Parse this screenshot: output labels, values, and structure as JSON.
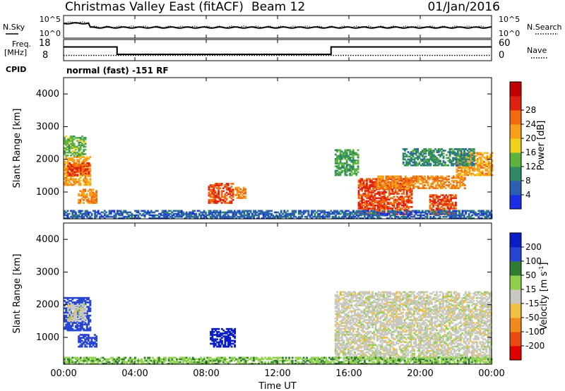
{
  "header": {
    "station": "Christmas Valley East (fitACF)",
    "beam": "Beam 12",
    "date": "01/Jan/2016"
  },
  "noise_panel": {
    "left_label": "N.Sky",
    "right_label": "N.Search",
    "left_ticks": [
      "10^5",
      "10^0"
    ],
    "right_ticks": [
      "10^5",
      "10^0"
    ]
  },
  "freq_panel": {
    "left_label_1": "Freq.",
    "left_label_2": "[MHz]",
    "right_label": "Nave",
    "left_ticks": [
      "18",
      "8"
    ],
    "right_ticks": [
      "60",
      "0"
    ],
    "freq_steps": [
      {
        "start_h": 0.0,
        "end_h": 3.0,
        "mhz": 14.5
      },
      {
        "start_h": 3.0,
        "end_h": 15.0,
        "mhz": 11.0
      },
      {
        "start_h": 15.0,
        "end_h": 24.0,
        "mhz": 14.5
      }
    ],
    "nave_level": 15
  },
  "cpid": {
    "label": "CPID",
    "text": "normal (fast) -151 RF"
  },
  "time_axis": {
    "title": "Time UT",
    "ticks": [
      "00:00",
      "04:00",
      "08:00",
      "12:00",
      "16:00",
      "20:00",
      "00:00"
    ]
  },
  "range_axis": {
    "title": "Slant Range [km]",
    "ticks": [
      "1000",
      "2000",
      "3000",
      "4000"
    ]
  },
  "power_bar": {
    "title": "Power [dB]",
    "ticks": [
      "4",
      "8",
      "12",
      "16",
      "20",
      "24",
      "28"
    ],
    "colors": [
      "#1a2ee6",
      "#2b5fb0",
      "#2f8a63",
      "#5db33f",
      "#f0d21c",
      "#f5a018",
      "#f06a0f",
      "#e02010",
      "#c00000"
    ]
  },
  "velocity_bar": {
    "title": "Velocity [m s",
    "title_sup": "-1",
    "title_end": "]",
    "ticks": [
      "200",
      "100",
      "50",
      "15",
      "-15",
      "-50",
      "-100",
      "-200"
    ],
    "colors": [
      "#0a1ec8",
      "#2846d2",
      "#2e7d32",
      "#8fd14f",
      "#c8c8c0",
      "#f0c040",
      "#f08a1c",
      "#e84a10",
      "#e00000"
    ]
  },
  "chart_data": {
    "type": "heatmap",
    "x_range_hours": [
      0,
      24
    ],
    "y_range_km": [
      180,
      4500
    ],
    "power_patches": [
      {
        "t0": 0.0,
        "t1": 1.5,
        "r0": 1200,
        "r1": 2100,
        "db": 22
      },
      {
        "t0": 0.2,
        "t1": 1.4,
        "r0": 1500,
        "r1": 1900,
        "db": 28
      },
      {
        "t0": 0.8,
        "t1": 1.8,
        "r0": 650,
        "r1": 1100,
        "db": 24
      },
      {
        "t0": 0.0,
        "t1": 1.2,
        "r0": 2100,
        "r1": 2700,
        "db": 14
      },
      {
        "t0": 8.1,
        "t1": 9.5,
        "r0": 650,
        "r1": 1250,
        "db": 28
      },
      {
        "t0": 9.6,
        "t1": 10.2,
        "r0": 800,
        "r1": 1150,
        "db": 24
      },
      {
        "t0": 15.2,
        "t1": 16.5,
        "r0": 1500,
        "r1": 2300,
        "db": 12
      },
      {
        "t0": 16.5,
        "t1": 19.5,
        "r0": 300,
        "r1": 1400,
        "db": 28
      },
      {
        "t0": 17.5,
        "t1": 22.5,
        "r0": 1100,
        "r1": 1500,
        "db": 24
      },
      {
        "t0": 20.5,
        "t1": 22.0,
        "r0": 300,
        "r1": 900,
        "db": 28
      },
      {
        "t0": 22.0,
        "t1": 24.0,
        "r0": 1500,
        "r1": 2200,
        "db": 22
      },
      {
        "t0": 19.0,
        "t1": 23.0,
        "r0": 1800,
        "r1": 2300,
        "db": 10
      },
      {
        "t0": 0.0,
        "t1": 24.0,
        "r0": 180,
        "r1": 420,
        "db": 6
      }
    ],
    "velocity_patches": [
      {
        "t0": 0.0,
        "t1": 1.5,
        "r0": 1200,
        "r1": 2200,
        "v": 150
      },
      {
        "t0": 0.2,
        "t1": 1.2,
        "r0": 1500,
        "r1": 2000,
        "v": 0
      },
      {
        "t0": 0.8,
        "t1": 1.8,
        "r0": 700,
        "r1": 1100,
        "v": 150
      },
      {
        "t0": 8.2,
        "t1": 9.6,
        "r0": 700,
        "r1": 1250,
        "v": 220
      },
      {
        "t0": 15.2,
        "t1": 24.0,
        "r0": 300,
        "r1": 2400,
        "v": 0
      },
      {
        "t0": 0.0,
        "t1": 24.0,
        "r0": 180,
        "r1": 400,
        "v": 40
      }
    ]
  }
}
